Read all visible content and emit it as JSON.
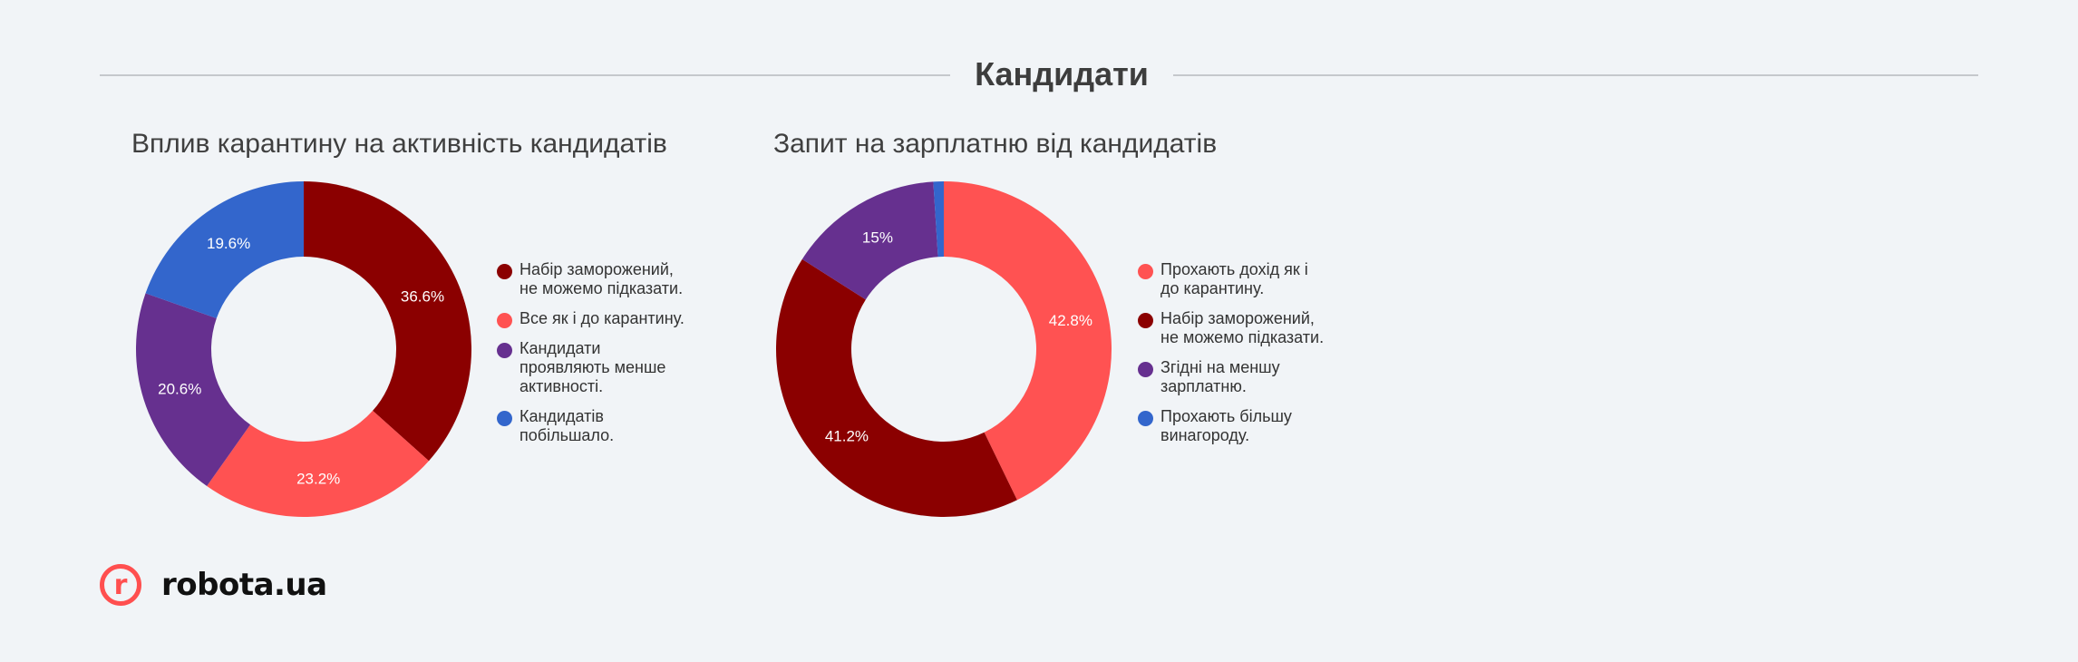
{
  "header": {
    "title": "Кандидати"
  },
  "brand": {
    "logo_letter": "r",
    "name": "robota.ua"
  },
  "chart_data": [
    {
      "type": "pie",
      "donut": true,
      "title": "Вплив карантину на активність кандидатів",
      "legend_position": "right",
      "slices": [
        {
          "label": "Набір заморожений,\nне можемо підказати.",
          "value": 36.6,
          "display": "36.6%",
          "color": "#8b0000"
        },
        {
          "label": "Все як і до карантину.",
          "value": 23.2,
          "display": "23.2%",
          "color": "#ff5252"
        },
        {
          "label": "Кандидати\nпроявляють менше\nактивності.",
          "value": 20.6,
          "display": "20.6%",
          "color": "#66308f"
        },
        {
          "label": "Кандидатів\nпобільшало.",
          "value": 19.6,
          "display": "19.6%",
          "color": "#3366cc"
        }
      ]
    },
    {
      "type": "pie",
      "donut": true,
      "title": "Запит на зарплатню від кандидатів",
      "legend_position": "right",
      "slices": [
        {
          "label": "Прохають дохід як і\nдо карантину.",
          "value": 42.8,
          "display": "42.8%",
          "color": "#ff5252"
        },
        {
          "label": "Набір заморожений,\nне можемо підказати.",
          "value": 41.2,
          "display": "41.2%",
          "color": "#8b0000"
        },
        {
          "label": "Згідні на меншу\nзарплатню.",
          "value": 15,
          "display": "15%",
          "color": "#66308f"
        },
        {
          "label": "Прохають більшу\nвинагороду.",
          "value": 1,
          "display": "",
          "color": "#3366cc"
        }
      ]
    }
  ]
}
